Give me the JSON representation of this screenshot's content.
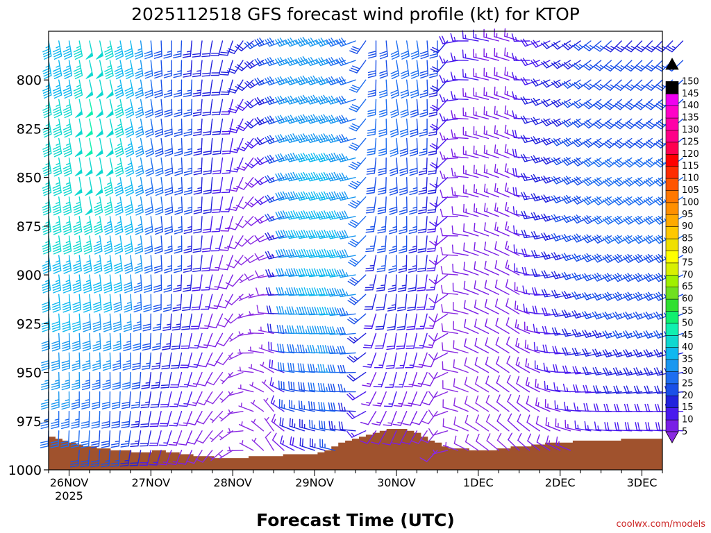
{
  "chart_data": {
    "type": "wind-barb-profile",
    "title": "2025112518 GFS forecast wind profile (kt) for KTOP",
    "xlabel": "Forecast Time (UTC)",
    "ylabel": "",
    "credit": "coolwx.com/models",
    "y_axis": {
      "ticks": [
        800,
        825,
        850,
        875,
        900,
        925,
        950,
        975,
        1000
      ],
      "range": [
        1000,
        775
      ]
    },
    "x_axis": {
      "ticks": [
        "26NOV",
        "27NOV",
        "28NOV",
        "29NOV",
        "30NOV",
        "1DEC",
        "2DEC",
        "3DEC"
      ],
      "year_label": "2025"
    },
    "colorbar": {
      "levels": [
        5,
        10,
        15,
        20,
        25,
        30,
        35,
        40,
        45,
        50,
        55,
        60,
        65,
        70,
        75,
        80,
        85,
        90,
        95,
        100,
        105,
        110,
        115,
        120,
        125,
        130,
        135,
        140,
        145,
        150
      ],
      "colors": [
        "#8a2be2",
        "#7a1ee6",
        "#4a1aee",
        "#2222dd",
        "#1a50e8",
        "#1e6ef0",
        "#1a98f0",
        "#10b8f0",
        "#10d8d0",
        "#10f0b0",
        "#10f070",
        "#30e030",
        "#70e020",
        "#a0f000",
        "#d8f000",
        "#ffff00",
        "#f0e000",
        "#ffc800",
        "#ffaa00",
        "#ff9000",
        "#ff7800",
        "#ff5500",
        "#ff2d00",
        "#ff0000",
        "#ff0050",
        "#ff0088",
        "#ff00a8",
        "#ff00c8",
        "#f000f0",
        "#000000"
      ]
    },
    "terrain_color": "#a0522d",
    "terrain_pressure": [
      983,
      984,
      985,
      986,
      987,
      988,
      988,
      989,
      989,
      990,
      990,
      990,
      991,
      991,
      991,
      990,
      990,
      991,
      991,
      992,
      992,
      993,
      993,
      993,
      994,
      994,
      994,
      994,
      994,
      993,
      993,
      993,
      993,
      993,
      992,
      992,
      992,
      992,
      992,
      991,
      990,
      988,
      986,
      985,
      984,
      983,
      982,
      981,
      980,
      979,
      979,
      979,
      980,
      981,
      983,
      985,
      986,
      988,
      989,
      989,
      989,
      990,
      990,
      990,
      990,
      989,
      989,
      988,
      988,
      988,
      987,
      987,
      986,
      986,
      986,
      986,
      985,
      985,
      985,
      985,
      985,
      985,
      985,
      984,
      984,
      984,
      984,
      984,
      984
    ],
    "wind_columns": [
      {
        "t": 0.0,
        "speed": [
          43,
          45,
          47,
          46,
          45,
          42,
          38,
          34,
          30
        ],
        "dir": [
          170,
          170,
          170,
          172,
          172,
          175,
          178,
          180,
          185
        ]
      },
      {
        "t": 0.25,
        "speed": [
          48,
          50,
          50,
          48,
          45,
          40,
          36,
          32,
          28
        ],
        "dir": [
          168,
          168,
          170,
          170,
          172,
          175,
          178,
          182,
          185
        ]
      },
      {
        "t": 0.5,
        "speed": [
          47,
          48,
          48,
          46,
          43,
          40,
          35,
          30,
          26
        ],
        "dir": [
          168,
          168,
          168,
          170,
          172,
          175,
          178,
          182,
          185
        ]
      },
      {
        "t": 0.75,
        "speed": [
          40,
          42,
          43,
          42,
          40,
          37,
          33,
          28,
          24
        ],
        "dir": [
          170,
          168,
          168,
          170,
          172,
          176,
          180,
          185,
          190
        ]
      },
      {
        "t": 1.0,
        "speed": [
          30,
          31,
          32,
          32,
          32,
          30,
          26,
          22,
          18
        ],
        "dir": [
          175,
          172,
          170,
          172,
          175,
          180,
          185,
          190,
          195
        ]
      },
      {
        "t": 1.25,
        "speed": [
          26,
          28,
          28,
          28,
          27,
          25,
          22,
          18,
          14
        ],
        "dir": [
          180,
          178,
          175,
          175,
          178,
          182,
          188,
          195,
          200
        ]
      },
      {
        "t": 1.5,
        "speed": [
          24,
          26,
          26,
          25,
          24,
          22,
          18,
          14,
          10
        ],
        "dir": [
          185,
          182,
          180,
          180,
          182,
          188,
          195,
          200,
          205
        ]
      },
      {
        "t": 1.75,
        "speed": [
          20,
          22,
          22,
          20,
          18,
          15,
          12,
          9,
          8
        ],
        "dir": [
          190,
          188,
          185,
          185,
          190,
          195,
          205,
          215,
          220
        ]
      },
      {
        "t": 2.0,
        "speed": [
          20,
          20,
          18,
          15,
          12,
          10,
          8,
          6,
          6
        ],
        "dir": [
          200,
          195,
          190,
          195,
          200,
          210,
          220,
          230,
          240
        ]
      },
      {
        "t": 2.25,
        "speed": [
          22,
          20,
          15,
          10,
          8,
          6,
          5,
          5,
          5
        ],
        "dir": [
          230,
          225,
          215,
          220,
          230,
          250,
          270,
          290,
          300
        ]
      },
      {
        "t": 2.5,
        "speed": [
          28,
          25,
          20,
          15,
          10,
          8,
          6,
          6,
          8
        ],
        "dir": [
          250,
          250,
          245,
          240,
          250,
          270,
          290,
          320,
          330
        ]
      },
      {
        "t": 2.75,
        "speed": [
          36,
          35,
          36,
          38,
          38,
          36,
          32,
          26,
          15
        ],
        "dir": [
          250,
          252,
          255,
          258,
          262,
          268,
          275,
          285,
          300
        ]
      },
      {
        "t": 3.0,
        "speed": [
          38,
          38,
          40,
          42,
          42,
          40,
          34,
          28,
          20
        ],
        "dir": [
          250,
          252,
          255,
          258,
          262,
          266,
          272,
          280,
          290
        ]
      },
      {
        "t": 3.25,
        "speed": [
          35,
          38,
          40,
          42,
          45,
          42,
          38,
          32,
          24
        ],
        "dir": [
          250,
          252,
          255,
          258,
          262,
          265,
          270,
          275,
          285
        ]
      },
      {
        "t": 3.5,
        "speed": [
          30,
          32,
          35,
          38,
          38,
          35,
          30,
          24,
          18
        ],
        "dir": [
          250,
          252,
          255,
          258,
          260,
          262,
          266,
          272,
          280
        ]
      },
      {
        "t": 3.75,
        "speed": [
          28,
          30,
          30,
          28,
          25,
          20,
          16,
          12,
          8
        ],
        "dir": [
          180,
          182,
          185,
          188,
          190,
          195,
          200,
          210,
          220
        ]
      },
      {
        "t": 4.0,
        "speed": [
          30,
          32,
          30,
          28,
          26,
          22,
          18,
          14,
          10
        ],
        "dir": [
          170,
          172,
          175,
          178,
          180,
          185,
          190,
          200,
          210
        ]
      },
      {
        "t": 4.25,
        "speed": [
          30,
          30,
          28,
          26,
          24,
          20,
          16,
          12,
          8
        ],
        "dir": [
          172,
          175,
          178,
          180,
          182,
          188,
          195,
          205,
          215
        ]
      },
      {
        "t": 4.5,
        "speed": [
          26,
          24,
          22,
          20,
          18,
          15,
          12,
          10,
          7
        ],
        "dir": [
          180,
          182,
          185,
          188,
          190,
          195,
          205,
          215,
          225
        ]
      },
      {
        "t": 4.75,
        "speed": [
          18,
          16,
          14,
          12,
          10,
          9,
          8,
          8,
          7
        ],
        "dir": [
          260,
          262,
          265,
          268,
          272,
          276,
          280,
          285,
          290
        ]
      },
      {
        "t": 5.0,
        "speed": [
          16,
          15,
          14,
          13,
          12,
          11,
          10,
          9,
          8
        ],
        "dir": [
          280,
          282,
          284,
          286,
          288,
          292,
          296,
          300,
          305
        ]
      },
      {
        "t": 5.25,
        "speed": [
          14,
          14,
          14,
          13,
          12,
          12,
          11,
          10,
          9
        ],
        "dir": [
          285,
          286,
          288,
          290,
          292,
          296,
          300,
          305,
          310
        ]
      },
      {
        "t": 5.5,
        "speed": [
          14,
          14,
          14,
          14,
          13,
          12,
          12,
          11,
          10
        ],
        "dir": [
          288,
          290,
          292,
          294,
          296,
          300,
          305,
          310,
          315
        ]
      },
      {
        "t": 5.75,
        "speed": [
          18,
          20,
          22,
          22,
          20,
          16,
          14,
          12,
          10
        ],
        "dir": [
          250,
          252,
          255,
          260,
          265,
          275,
          290,
          300,
          310
        ]
      },
      {
        "t": 6.0,
        "speed": [
          20,
          22,
          24,
          25,
          24,
          20,
          18,
          15,
          12
        ],
        "dir": [
          240,
          242,
          245,
          250,
          255,
          262,
          272,
          285,
          300
        ]
      },
      {
        "t": 6.25,
        "speed": [
          24,
          26,
          28,
          28,
          26,
          24,
          20,
          16,
          12
        ],
        "dir": [
          235,
          238,
          240,
          245,
          250,
          255,
          262,
          275,
          290
        ]
      },
      {
        "t": 6.5,
        "speed": [
          26,
          28,
          30,
          30,
          28,
          26,
          22,
          18,
          14
        ],
        "dir": [
          230,
          232,
          235,
          240,
          245,
          250,
          258,
          270,
          285
        ]
      },
      {
        "t": 6.75,
        "speed": [
          24,
          28,
          30,
          32,
          30,
          28,
          24,
          20,
          15
        ],
        "dir": [
          225,
          228,
          232,
          238,
          242,
          248,
          255,
          268,
          280
        ]
      }
    ]
  }
}
